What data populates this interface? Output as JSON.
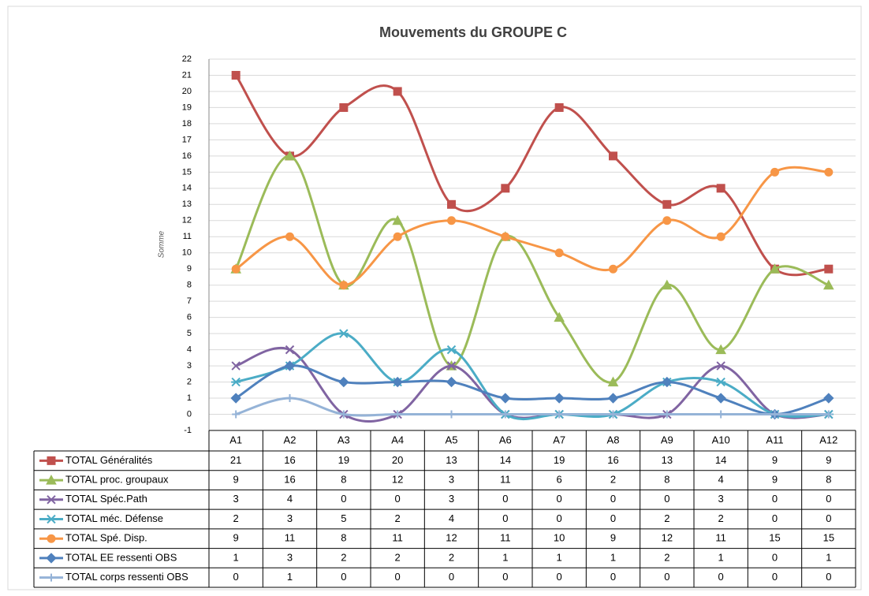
{
  "chart_data": {
    "type": "line",
    "title": "Mouvements du GROUPE C",
    "y_label": "Somme",
    "categories": [
      "A1",
      "A2",
      "A3",
      "A4",
      "A5",
      "A6",
      "A7",
      "A8",
      "A9",
      "A10",
      "A11",
      "A12"
    ],
    "ylim": [
      -1,
      22
    ],
    "yticks": [
      -1,
      0,
      1,
      2,
      3,
      4,
      5,
      6,
      7,
      8,
      9,
      10,
      11,
      12,
      13,
      14,
      15,
      16,
      17,
      18,
      19,
      20,
      21,
      22
    ],
    "grid": true,
    "smooth": true,
    "series": [
      {
        "name": "TOTAL Généralités",
        "color": "#c0504d",
        "marker": "square",
        "values": [
          21,
          16,
          19,
          20,
          13,
          14,
          19,
          16,
          13,
          14,
          9,
          9
        ]
      },
      {
        "name": "TOTAL proc. groupaux",
        "color": "#9bbb59",
        "marker": "triangle",
        "values": [
          9,
          16,
          8,
          12,
          3,
          11,
          6,
          2,
          8,
          4,
          9,
          8
        ]
      },
      {
        "name": "TOTAL Spéc.Path",
        "color": "#8064a2",
        "marker": "x",
        "values": [
          3,
          4,
          0,
          0,
          3,
          0,
          0,
          0,
          0,
          3,
          0,
          0
        ]
      },
      {
        "name": "TOTAL méc. Défense",
        "color": "#4bacc6",
        "marker": "star",
        "values": [
          2,
          3,
          5,
          2,
          4,
          0,
          0,
          0,
          2,
          2,
          0,
          0
        ]
      },
      {
        "name": "TOTAL Spé. Disp.",
        "color": "#f79646",
        "marker": "circle",
        "values": [
          9,
          11,
          8,
          11,
          12,
          11,
          10,
          9,
          12,
          11,
          15,
          15
        ]
      },
      {
        "name": "TOTAL EE ressenti OBS",
        "color": "#4f81bd",
        "marker": "diamond",
        "values": [
          1,
          3,
          2,
          2,
          2,
          1,
          1,
          1,
          2,
          1,
          0,
          1
        ]
      },
      {
        "name": "TOTAL corps ressenti OBS",
        "color": "#95b3d7",
        "marker": "plus",
        "values": [
          0,
          1,
          0,
          0,
          0,
          0,
          0,
          0,
          0,
          0,
          0,
          0
        ]
      }
    ]
  }
}
